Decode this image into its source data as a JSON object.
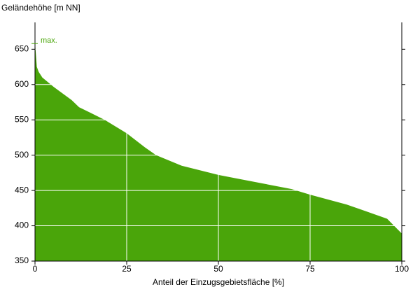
{
  "chart_data": {
    "type": "area",
    "ylabel": "Geländehöhe [m NN]",
    "xlabel": "Anteil der Einzugsgebietsfläche [%]",
    "annotation": "max.",
    "color": "#4aa50a",
    "x": [
      0,
      0.5,
      1,
      2,
      5,
      10,
      12,
      19,
      25,
      30,
      33,
      40,
      50,
      60,
      70,
      75,
      85,
      90,
      96,
      100
    ],
    "values": [
      660,
      625,
      618,
      610,
      597,
      578,
      568,
      550,
      531,
      511,
      500,
      485,
      472,
      462,
      452,
      444,
      430,
      421,
      410,
      389
    ],
    "xlim": [
      0,
      100
    ],
    "ylim": [
      350,
      688
    ],
    "xticks": [
      0,
      25,
      50,
      75,
      100
    ],
    "yticks": [
      350,
      400,
      450,
      500,
      550,
      600,
      650
    ],
    "grid": true
  }
}
